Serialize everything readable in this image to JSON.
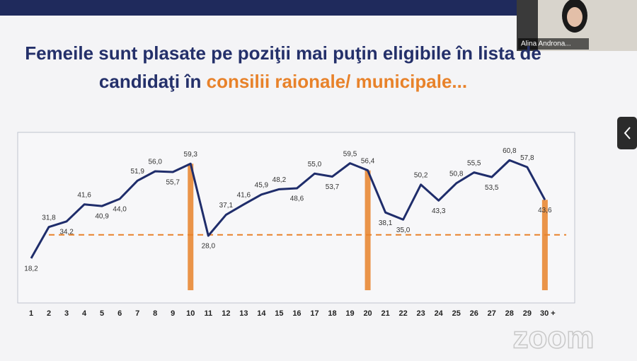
{
  "chart_data": {
    "type": "line",
    "title": "Femeile sunt plasate pe poziţii mai puţin eligibile în lista de",
    "title_line2": "candidaţi în",
    "title_highlight": "consilii raionale/ municipale...",
    "categories": [
      "1",
      "2",
      "3",
      "4",
      "5",
      "6",
      "7",
      "8",
      "9",
      "10",
      "11",
      "12",
      "13",
      "14",
      "15",
      "16",
      "17",
      "18",
      "19",
      "20",
      "21",
      "22",
      "23",
      "24",
      "25",
      "26",
      "27",
      "28",
      "29",
      "30 +"
    ],
    "values": [
      18.2,
      31.8,
      34.2,
      41.6,
      40.9,
      44.0,
      51.9,
      56.0,
      55.7,
      59.3,
      28.0,
      37.1,
      41.6,
      45.9,
      48.2,
      48.6,
      55.0,
      53.7,
      59.5,
      56.4,
      38.1,
      35.0,
      50.2,
      43.3,
      50.8,
      55.5,
      53.5,
      60.8,
      57.8,
      43.6
    ],
    "value_labels": [
      "18,2",
      "31,8",
      "34,2",
      "41,6",
      "40,9",
      "44,0",
      "51,9",
      "56,0",
      "55,7",
      "59,3",
      "28,0",
      "37,1",
      "41,6",
      "45,9",
      "48,2",
      "48,6",
      "55,0",
      "53,7",
      "59,5",
      "56,4",
      "38,1",
      "35,0",
      "50,2",
      "43,3",
      "50,8",
      "55,5",
      "53,5",
      "60,8",
      "57,8",
      "43,6"
    ],
    "color": "#1f2d6b",
    "highlight_color": "#e8822a",
    "highlight_indices": [
      9,
      19,
      29
    ],
    "reference_line": 28.4,
    "ylim": [
      0,
      72
    ]
  },
  "video_label": "Alina Androna...",
  "watermark": "zoom"
}
